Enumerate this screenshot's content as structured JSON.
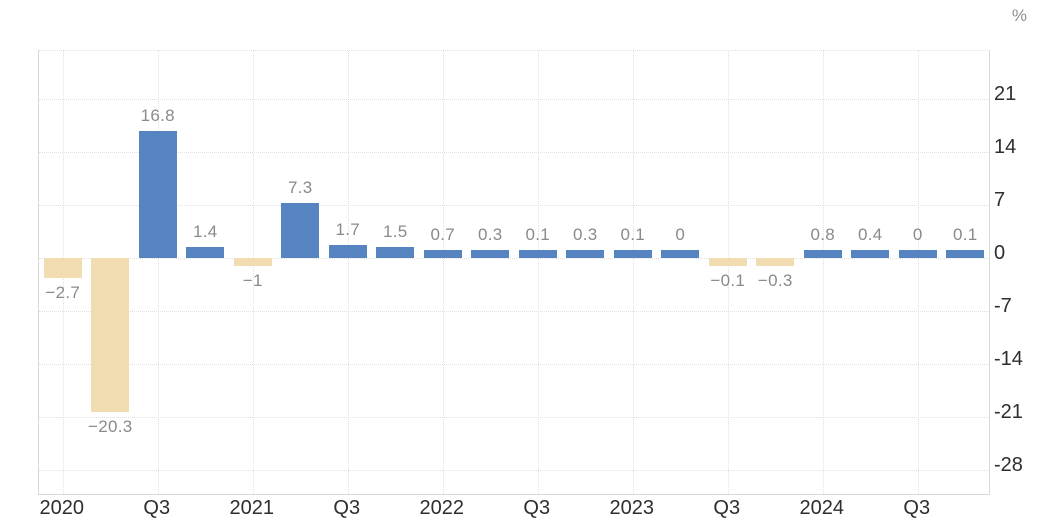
{
  "chart": {
    "unit_label": "%"
  },
  "chart_data": {
    "type": "bar",
    "title": "",
    "unit": "%",
    "x_tick_labels": [
      "2020",
      "Q3",
      "2021",
      "Q3",
      "2022",
      "Q3",
      "2023",
      "Q3",
      "2024",
      "Q3"
    ],
    "y_tick_labels": [
      "21",
      "14",
      "7",
      "0",
      "-7",
      "-14",
      "-21",
      "-28"
    ],
    "y_ticks": [
      21,
      14,
      7,
      0,
      -7,
      -14,
      -21,
      -28
    ],
    "ylim": [
      -31.3,
      27.3
    ],
    "grid": "dotted, both axes",
    "legend": "none",
    "colors": {
      "positive_bar": "#5584c0",
      "negative_bar": "#f2dcb1",
      "bar_value_label": "#8a8a8a",
      "axis_tick_label": "#2e2e2e",
      "gridline": "#e0e0e0",
      "axis_line": "#d8d8d8"
    },
    "bars": [
      {
        "value": -2.7,
        "label": "−2.7"
      },
      {
        "value": -20.3,
        "label": "−20.3"
      },
      {
        "value": 16.8,
        "label": "16.8"
      },
      {
        "value": 1.4,
        "label": "1.4"
      },
      {
        "value": -1,
        "label": "−1"
      },
      {
        "value": 7.3,
        "label": "7.3"
      },
      {
        "value": 1.7,
        "label": "1.7"
      },
      {
        "value": 1.5,
        "label": "1.5"
      },
      {
        "value": 0.7,
        "label": "0.7"
      },
      {
        "value": 0.3,
        "label": "0.3"
      },
      {
        "value": 0.1,
        "label": "0.1"
      },
      {
        "value": 0.3,
        "label": "0.3"
      },
      {
        "value": 0.1,
        "label": "0.1"
      },
      {
        "value": 0,
        "label": "0"
      },
      {
        "value": -0.1,
        "label": "−0.1"
      },
      {
        "value": -0.3,
        "label": "−0.3"
      },
      {
        "value": 0.8,
        "label": "0.8"
      },
      {
        "value": 0.4,
        "label": "0.4"
      },
      {
        "value": 0,
        "label": "0"
      },
      {
        "value": 0.1,
        "label": "0.1"
      }
    ]
  }
}
